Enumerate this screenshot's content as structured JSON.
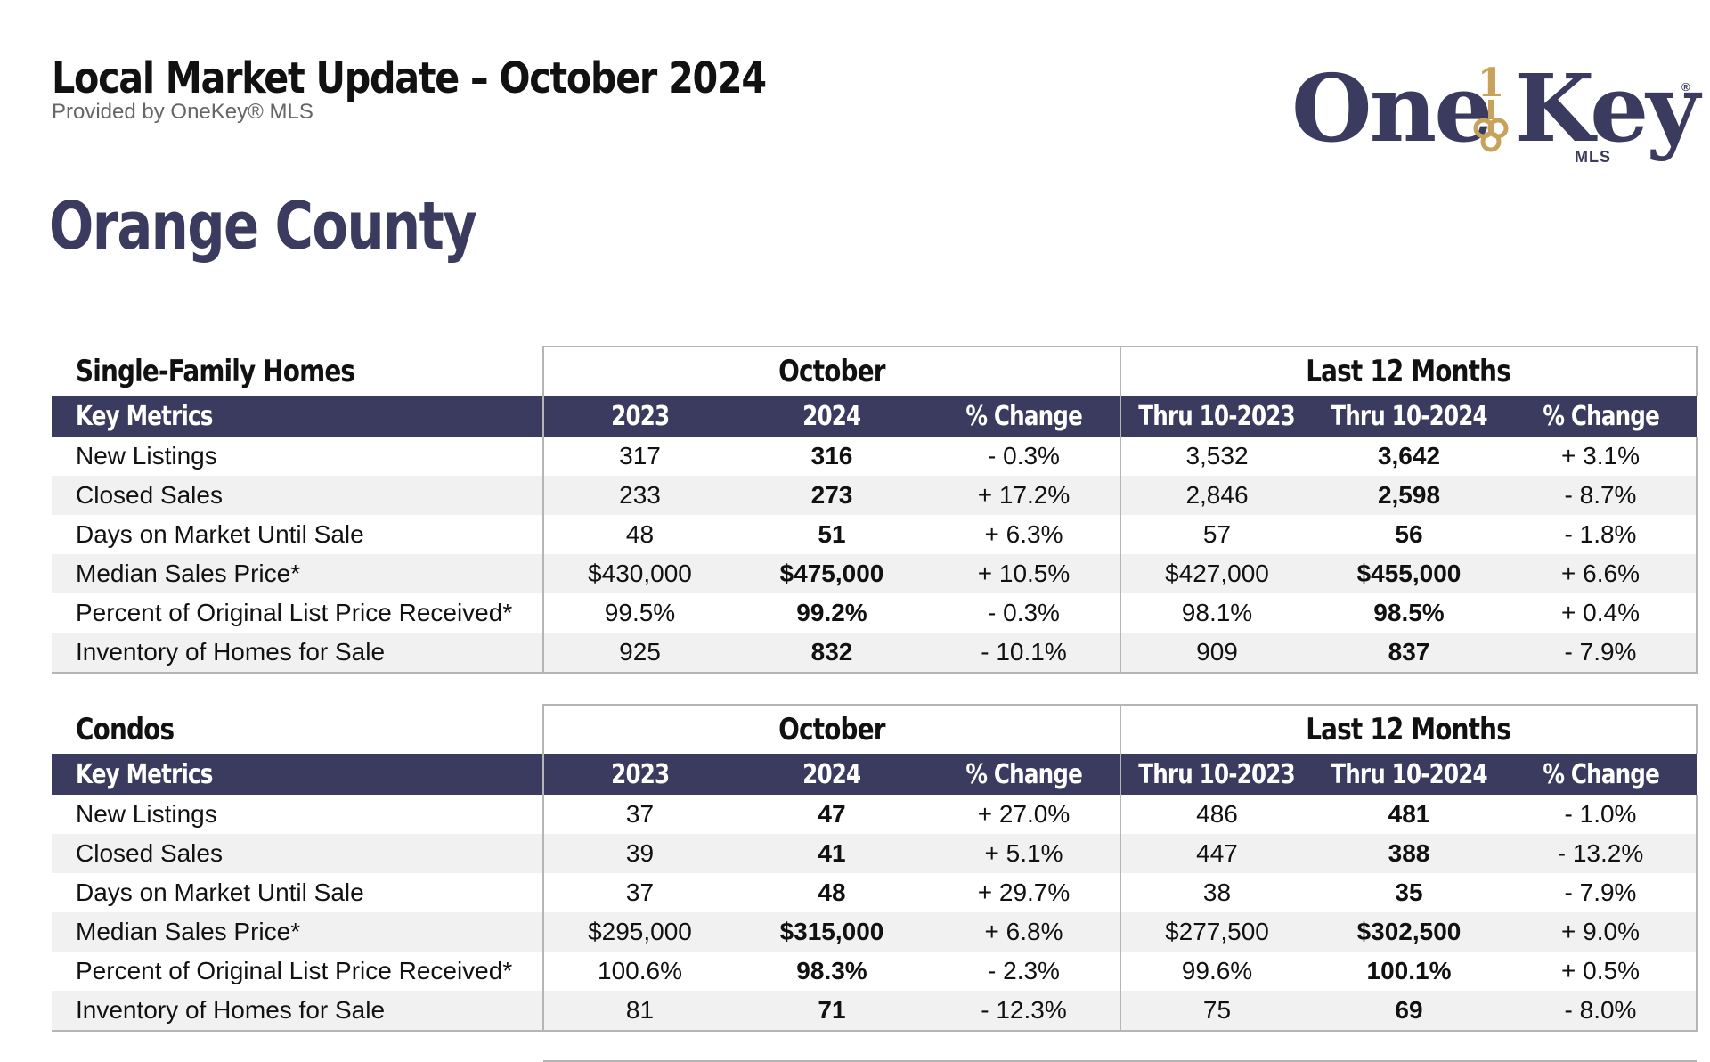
{
  "header": {
    "title": "Local Market Update – October 2024",
    "subtitle": "Provided by OneKey® MLS"
  },
  "area": "Orange County",
  "logo": {
    "text_one": "One",
    "text_key": "Key",
    "sub": "MLS",
    "reg": "®",
    "numeral": "1",
    "icon": "key-icon",
    "colors": {
      "navy": "#3b3a5f",
      "gold": "#c6a25a"
    }
  },
  "colors": {
    "header_bg": "#3b3a5f",
    "row_shade": "#f1f1f1",
    "border": "#b5b5b5"
  },
  "columns": {
    "metric": "Key Metrics",
    "month_prev": "2023",
    "month_curr": "2024",
    "pct": "% Change",
    "ytd_prev": "Thru 10-2023",
    "ytd_curr": "Thru 10-2024"
  },
  "periods": {
    "month": "October",
    "last12": "Last 12 Months"
  },
  "tables": {
    "single_family": {
      "title": "Single-Family Homes",
      "rows": [
        {
          "metric": "New Listings",
          "m2023": "317",
          "m2024": "316",
          "mchg": "- 0.3%",
          "y2023": "3,532",
          "y2024": "3,642",
          "ychg": "+ 3.1%"
        },
        {
          "metric": "Closed Sales",
          "m2023": "233",
          "m2024": "273",
          "mchg": "+ 17.2%",
          "y2023": "2,846",
          "y2024": "2,598",
          "ychg": "- 8.7%"
        },
        {
          "metric": "Days on Market Until Sale",
          "m2023": "48",
          "m2024": "51",
          "mchg": "+ 6.3%",
          "y2023": "57",
          "y2024": "56",
          "ychg": "- 1.8%"
        },
        {
          "metric": "Median Sales Price*",
          "m2023": "$430,000",
          "m2024": "$475,000",
          "mchg": "+ 10.5%",
          "y2023": "$427,000",
          "y2024": "$455,000",
          "ychg": "+ 6.6%"
        },
        {
          "metric": "Percent of Original List Price Received*",
          "m2023": "99.5%",
          "m2024": "99.2%",
          "mchg": "- 0.3%",
          "y2023": "98.1%",
          "y2024": "98.5%",
          "ychg": "+ 0.4%"
        },
        {
          "metric": "Inventory of Homes for Sale",
          "m2023": "925",
          "m2024": "832",
          "mchg": "- 10.1%",
          "y2023": "909",
          "y2024": "837",
          "ychg": "- 7.9%"
        }
      ]
    },
    "condos": {
      "title": "Condos",
      "rows": [
        {
          "metric": "New Listings",
          "m2023": "37",
          "m2024": "47",
          "mchg": "+ 27.0%",
          "y2023": "486",
          "y2024": "481",
          "ychg": "- 1.0%"
        },
        {
          "metric": "Closed Sales",
          "m2023": "39",
          "m2024": "41",
          "mchg": "+ 5.1%",
          "y2023": "447",
          "y2024": "388",
          "ychg": "- 13.2%"
        },
        {
          "metric": "Days on Market Until Sale",
          "m2023": "37",
          "m2024": "48",
          "mchg": "+ 29.7%",
          "y2023": "38",
          "y2024": "35",
          "ychg": "- 7.9%"
        },
        {
          "metric": "Median Sales Price*",
          "m2023": "$295,000",
          "m2024": "$315,000",
          "mchg": "+ 6.8%",
          "y2023": "$277,500",
          "y2024": "$302,500",
          "ychg": "+ 9.0%"
        },
        {
          "metric": "Percent of Original List Price Received*",
          "m2023": "100.6%",
          "m2024": "98.3%",
          "mchg": "- 2.3%",
          "y2023": "99.6%",
          "y2024": "100.1%",
          "ychg": "+ 0.5%"
        },
        {
          "metric": "Inventory of Homes for Sale",
          "m2023": "81",
          "m2024": "71",
          "mchg": "- 12.3%",
          "y2023": "75",
          "y2024": "69",
          "ychg": "- 8.0%"
        }
      ]
    }
  }
}
